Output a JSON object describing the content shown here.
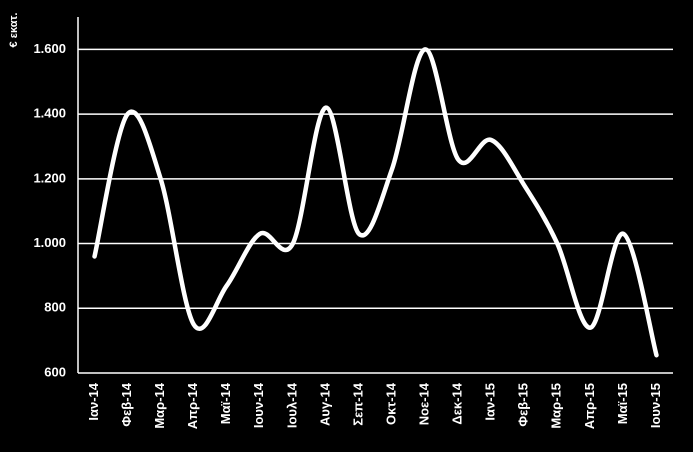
{
  "chart_data": {
    "type": "line",
    "y_label": "€ εκατ.",
    "categories": [
      "Ιαν-14",
      "Φεβ-14",
      "Μαρ-14",
      "Απρ-14",
      "Μαϊ-14",
      "Ιουν-14",
      "Ιουλ-14",
      "Αυγ-14",
      "Σεπ-14",
      "Οκτ-14",
      "Νοε-14",
      "Δεκ-14",
      "Ιαν-15",
      "Φεβ-15",
      "Μαρ-15",
      "Απρ-15",
      "Μαϊ-15",
      "Ιουν-15"
    ],
    "values": [
      960,
      1400,
      1200,
      750,
      870,
      1030,
      1000,
      1420,
      1030,
      1230,
      1600,
      1260,
      1320,
      1180,
      1000,
      740,
      1030,
      655
    ],
    "color": "#ffffff",
    "smooth": true,
    "grid": true,
    "ylim": [
      600,
      1700
    ],
    "yticks": [
      {
        "value": 600,
        "label": "600"
      },
      {
        "value": 800,
        "label": "800"
      },
      {
        "value": 1000,
        "label": "1.000"
      },
      {
        "value": 1200,
        "label": "1.200"
      },
      {
        "value": 1400,
        "label": "1.400"
      },
      {
        "value": 1600,
        "label": "1.600"
      }
    ]
  }
}
